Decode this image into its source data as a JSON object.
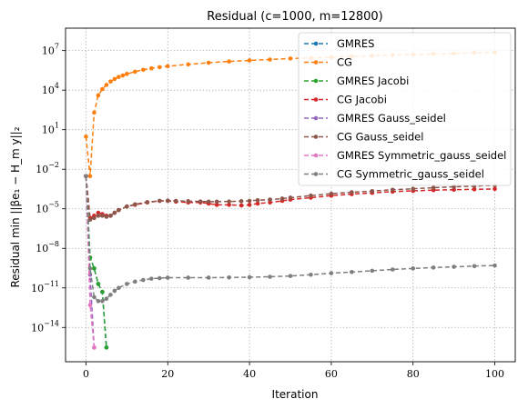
{
  "chart_data": {
    "type": "line",
    "title": "Residual (c=1000, m=12800)",
    "xlabel": "Iteration",
    "ylabel": "Residual min ||βe₁ − H_m y||₂",
    "yscale": "log",
    "xlim": [
      -5,
      105
    ],
    "ylim_exponent": [
      -16.6,
      8.7
    ],
    "x_ticks": [
      0,
      20,
      40,
      60,
      80,
      100
    ],
    "y_tick_exponents": [
      -14,
      -11,
      -8,
      -5,
      -2,
      1,
      4,
      7
    ],
    "grid": true,
    "legend_position": "top-right",
    "series": [
      {
        "name": "GMRES",
        "color": "#1f77b4",
        "points": [
          [
            0,
            0.003
          ],
          [
            1,
            2e-09
          ],
          [
            2,
            3e-10
          ],
          [
            3,
            2e-11
          ],
          [
            4,
            5e-12
          ],
          [
            5,
            3e-16
          ]
        ]
      },
      {
        "name": "CG",
        "color": "#ff7f0e",
        "points": [
          [
            0,
            3
          ],
          [
            1,
            0.003
          ],
          [
            2,
            200
          ],
          [
            3,
            4000
          ],
          [
            4,
            12000
          ],
          [
            5,
            25000
          ],
          [
            6,
            45000
          ],
          [
            7,
            70000
          ],
          [
            8,
            100000
          ],
          [
            9,
            130000
          ],
          [
            10,
            170000
          ],
          [
            12,
            250000
          ],
          [
            14,
            350000
          ],
          [
            16,
            450000
          ],
          [
            18,
            550000
          ],
          [
            20,
            650000
          ],
          [
            25,
            900000
          ],
          [
            30,
            1200000
          ],
          [
            35,
            1500000
          ],
          [
            40,
            1800000
          ],
          [
            45,
            2100000
          ],
          [
            50,
            2500000
          ],
          [
            55,
            2800000
          ],
          [
            60,
            3200000
          ],
          [
            65,
            3600000
          ],
          [
            70,
            4000000
          ],
          [
            75,
            4500000
          ],
          [
            80,
            5000000
          ],
          [
            85,
            5500000
          ],
          [
            90,
            6000000
          ],
          [
            95,
            6700000
          ],
          [
            100,
            7500000
          ]
        ]
      },
      {
        "name": "GMRES Jacobi",
        "color": "#2ca02c",
        "points": [
          [
            0,
            0.003
          ],
          [
            1,
            2e-09
          ],
          [
            2,
            3e-10
          ],
          [
            3,
            2e-11
          ],
          [
            4,
            5e-12
          ],
          [
            5,
            3e-16
          ]
        ]
      },
      {
        "name": "CG Jacobi",
        "color": "#d62728",
        "points": [
          [
            0,
            0.003
          ],
          [
            1,
            2e-06
          ],
          [
            2,
            3e-06
          ],
          [
            3,
            5e-06
          ],
          [
            4,
            4e-06
          ],
          [
            5,
            3e-06
          ],
          [
            6,
            3e-06
          ],
          [
            7,
            5e-06
          ],
          [
            8,
            8e-06
          ],
          [
            10,
            1.5e-05
          ],
          [
            12,
            2e-05
          ],
          [
            15,
            3e-05
          ],
          [
            18,
            4e-05
          ],
          [
            20,
            4e-05
          ],
          [
            22,
            3.5e-05
          ],
          [
            25,
            3e-05
          ],
          [
            28,
            3e-05
          ],
          [
            30,
            2.5e-05
          ],
          [
            32,
            2e-05
          ],
          [
            35,
            2e-05
          ],
          [
            38,
            1.8e-05
          ],
          [
            40,
            2e-05
          ],
          [
            42,
            2.5e-05
          ],
          [
            45,
            3e-05
          ],
          [
            48,
            4e-05
          ],
          [
            50,
            5e-05
          ],
          [
            55,
            7e-05
          ],
          [
            60,
            0.0001
          ],
          [
            65,
            0.00013
          ],
          [
            70,
            0.00016
          ],
          [
            75,
            0.0002
          ],
          [
            80,
            0.00023
          ],
          [
            85,
            0.00026
          ],
          [
            90,
            0.00028
          ],
          [
            95,
            0.0003
          ],
          [
            100,
            0.00032
          ]
        ]
      },
      {
        "name": "GMRES Gauss_seidel",
        "color": "#9467bd",
        "points": [
          [
            0,
            0.003
          ],
          [
            1,
            1e-10
          ],
          [
            2,
            3e-16
          ]
        ]
      },
      {
        "name": "CG Gauss_seidel",
        "color": "#8c564b",
        "points": [
          [
            0,
            0.003
          ],
          [
            1,
            1.5e-06
          ],
          [
            2,
            2e-06
          ],
          [
            3,
            3e-06
          ],
          [
            4,
            3e-06
          ],
          [
            5,
            2.5e-06
          ],
          [
            6,
            3e-06
          ],
          [
            7,
            5e-06
          ],
          [
            8,
            8e-06
          ],
          [
            10,
            1.5e-05
          ],
          [
            12,
            2.2e-05
          ],
          [
            15,
            3.2e-05
          ],
          [
            18,
            4e-05
          ],
          [
            20,
            4.2e-05
          ],
          [
            22,
            4e-05
          ],
          [
            25,
            3.8e-05
          ],
          [
            28,
            3.6e-05
          ],
          [
            30,
            3.5e-05
          ],
          [
            32,
            3.5e-05
          ],
          [
            35,
            3.6e-05
          ],
          [
            38,
            3.8e-05
          ],
          [
            40,
            4e-05
          ],
          [
            42,
            4.5e-05
          ],
          [
            45,
            5e-05
          ],
          [
            48,
            6e-05
          ],
          [
            50,
            7e-05
          ],
          [
            55,
            0.0001
          ],
          [
            60,
            0.00014
          ],
          [
            65,
            0.00018
          ],
          [
            70,
            0.00022
          ],
          [
            75,
            0.00028
          ],
          [
            80,
            0.00033
          ],
          [
            85,
            0.0004
          ],
          [
            90,
            0.00046
          ],
          [
            95,
            0.00053
          ],
          [
            100,
            0.0006
          ]
        ]
      },
      {
        "name": "GMRES Symmetric_gauss_seidel",
        "color": "#e377c2",
        "points": [
          [
            0,
            0.003
          ],
          [
            1,
            5e-13
          ],
          [
            2,
            3e-16
          ]
        ]
      },
      {
        "name": "CG Symmetric_gauss_seidel",
        "color": "#7f7f7f",
        "points": [
          [
            0,
            0.003
          ],
          [
            1,
            3e-10
          ],
          [
            2,
            2e-12
          ],
          [
            3,
            1e-12
          ],
          [
            4,
            1e-12
          ],
          [
            5,
            1.5e-12
          ],
          [
            6,
            3e-12
          ],
          [
            7,
            6e-12
          ],
          [
            8,
            1e-11
          ],
          [
            10,
            2e-11
          ],
          [
            12,
            3e-11
          ],
          [
            14,
            4e-11
          ],
          [
            16,
            5e-11
          ],
          [
            18,
            5.5e-11
          ],
          [
            20,
            6e-11
          ],
          [
            25,
            6e-11
          ],
          [
            30,
            6e-11
          ],
          [
            35,
            6.2e-11
          ],
          [
            40,
            6.5e-11
          ],
          [
            45,
            7e-11
          ],
          [
            50,
            8e-11
          ],
          [
            55,
            1e-10
          ],
          [
            60,
            1.3e-10
          ],
          [
            65,
            1.6e-10
          ],
          [
            70,
            2e-10
          ],
          [
            75,
            2.5e-10
          ],
          [
            80,
            3e-10
          ],
          [
            85,
            3.5e-10
          ],
          [
            90,
            4e-10
          ],
          [
            95,
            4.5e-10
          ],
          [
            100,
            5e-10
          ]
        ]
      }
    ]
  }
}
